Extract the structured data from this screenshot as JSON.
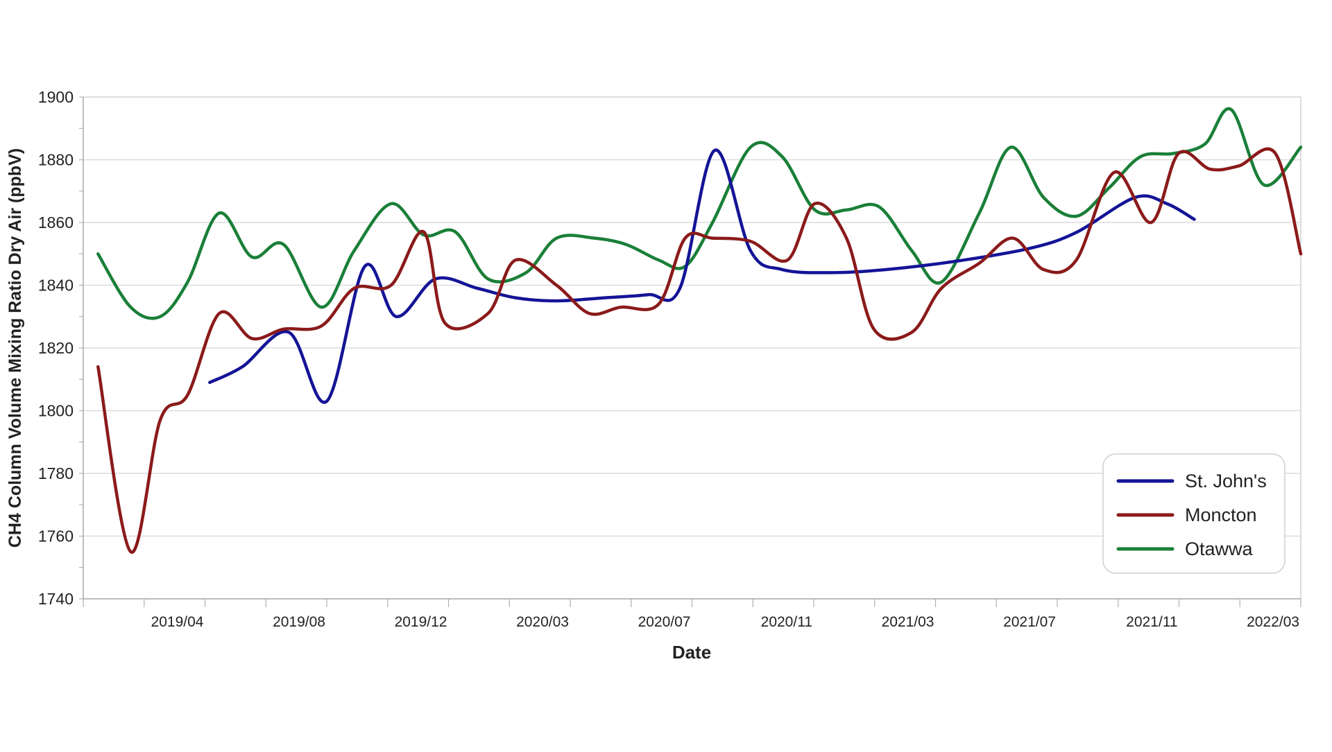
{
  "chart_data": {
    "type": "line",
    "xlabel": "Date",
    "ylabel": "CH4 Column Volume Mixing Ratio Dry Air (ppbV)",
    "ylim": [
      1740,
      1900
    ],
    "y_ticks": [
      1740,
      1760,
      1780,
      1800,
      1820,
      1840,
      1860,
      1880,
      1900
    ],
    "xlim": [
      "2019-01-01",
      "2022-03-01"
    ],
    "x_ticks": [
      "2019/04",
      "2019/08",
      "2019/12",
      "2020/03",
      "2020/07",
      "2020/11",
      "2021/03",
      "2021/07",
      "2021/11",
      "2022/03"
    ],
    "grid": "horizontal",
    "legend_position": "bottom-right",
    "series": [
      {
        "name": "St. John's",
        "color": "#141497",
        "x": [
          "2019-05-01",
          "2019-06-01",
          "2019-07-15",
          "2019-08-20",
          "2019-09-25",
          "2019-10-25",
          "2019-12-01",
          "2020-01-10",
          "2020-02-15",
          "2020-03-25",
          "2020-05-10",
          "2020-06-20",
          "2020-07-20",
          "2020-08-22",
          "2020-09-25",
          "2020-10-25",
          "2020-12-10",
          "2021-02-01",
          "2021-04-15",
          "2021-06-20",
          "2021-08-01",
          "2021-09-25",
          "2021-10-25",
          "2021-11-20"
        ],
        "values": [
          1809,
          1814,
          1825,
          1803,
          1846,
          1830,
          1842,
          1839,
          1836,
          1835,
          1836,
          1837,
          1839,
          1883,
          1851,
          1845,
          1844,
          1845,
          1848,
          1852,
          1857,
          1868,
          1866,
          1861
        ]
      },
      {
        "name": "Moncton",
        "color": "#8B1A1A",
        "x": [
          "2019-01-15",
          "2019-02-15",
          "2019-03-15",
          "2019-04-10",
          "2019-05-10",
          "2019-06-10",
          "2019-07-10",
          "2019-08-15",
          "2019-09-15",
          "2019-10-20",
          "2019-11-20",
          "2019-12-10",
          "2020-01-20",
          "2020-02-15",
          "2020-03-25",
          "2020-04-25",
          "2020-05-25",
          "2020-06-30",
          "2020-07-25",
          "2020-08-20",
          "2020-09-25",
          "2020-10-30",
          "2020-11-25",
          "2020-12-25",
          "2021-01-20",
          "2021-02-25",
          "2021-03-25",
          "2021-04-30",
          "2021-06-01",
          "2021-06-30",
          "2021-07-31",
          "2021-09-05",
          "2021-10-10",
          "2021-11-05",
          "2021-12-05",
          "2022-01-01",
          "2022-02-05",
          "2022-03-01"
        ],
        "values": [
          1814,
          1755,
          1797,
          1805,
          1831,
          1823,
          1826,
          1827,
          1839,
          1840,
          1857,
          1828,
          1831,
          1848,
          1840,
          1831,
          1833,
          1834,
          1855,
          1855,
          1854,
          1848,
          1866,
          1855,
          1826,
          1825,
          1839,
          1847,
          1855,
          1845,
          1848,
          1876,
          1860,
          1882,
          1877,
          1878,
          1882,
          1850
        ]
      },
      {
        "name": "Otawwa",
        "color": "#1A7F38",
        "x": [
          "2019-01-15",
          "2019-02-15",
          "2019-03-15",
          "2019-04-10",
          "2019-05-10",
          "2019-06-10",
          "2019-07-10",
          "2019-08-15",
          "2019-09-15",
          "2019-10-20",
          "2019-11-20",
          "2019-12-20",
          "2020-01-20",
          "2020-02-25",
          "2020-03-25",
          "2020-04-30",
          "2020-05-30",
          "2020-06-30",
          "2020-07-25",
          "2020-08-20",
          "2020-09-25",
          "2020-10-25",
          "2020-11-25",
          "2020-12-25",
          "2021-01-25",
          "2021-02-25",
          "2021-03-25",
          "2021-04-30",
          "2021-05-30",
          "2021-06-30",
          "2021-07-31",
          "2021-08-31",
          "2021-09-30",
          "2021-10-31",
          "2021-11-30",
          "2021-12-25",
          "2022-01-25",
          "2022-03-01"
        ],
        "values": [
          1850,
          1833,
          1830,
          1841,
          1863,
          1849,
          1853,
          1833,
          1851,
          1866,
          1856,
          1857,
          1842,
          1844,
          1855,
          1855,
          1853,
          1848,
          1846,
          1860,
          1884,
          1881,
          1864,
          1864,
          1865,
          1851,
          1841,
          1863,
          1884,
          1868,
          1862,
          1871,
          1881,
          1882,
          1885,
          1896,
          1872,
          1884
        ]
      }
    ]
  }
}
